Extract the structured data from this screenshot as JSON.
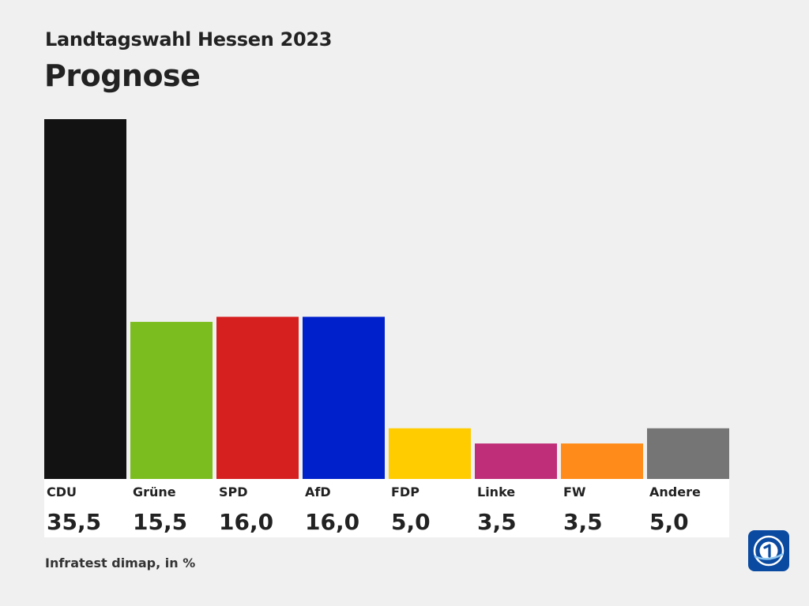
{
  "header": {
    "subtitle": "Landtagswahl Hessen 2023",
    "title": "Prognose"
  },
  "footer": {
    "source": "Infratest dimap, in %"
  },
  "logo": {
    "icon": "tagesschau-logo-icon",
    "color": "#0a4aa0"
  },
  "chart_data": {
    "type": "bar",
    "categories": [
      "CDU",
      "Grüne",
      "SPD",
      "AfD",
      "FDP",
      "Linke",
      "FW",
      "Andere"
    ],
    "values": [
      35.5,
      15.5,
      16.0,
      16.0,
      5.0,
      3.5,
      3.5,
      5.0
    ],
    "value_labels": [
      "35,5",
      "15,5",
      "16,0",
      "16,0",
      "5,0",
      "3,5",
      "3,5",
      "5,0"
    ],
    "colors": [
      "#121212",
      "#7bbd1e",
      "#d62020",
      "#0020cc",
      "#ffcc00",
      "#bf2f79",
      "#ff8c1a",
      "#757575"
    ],
    "ylim": [
      0,
      35.5
    ],
    "grid": false,
    "legend": "none"
  }
}
